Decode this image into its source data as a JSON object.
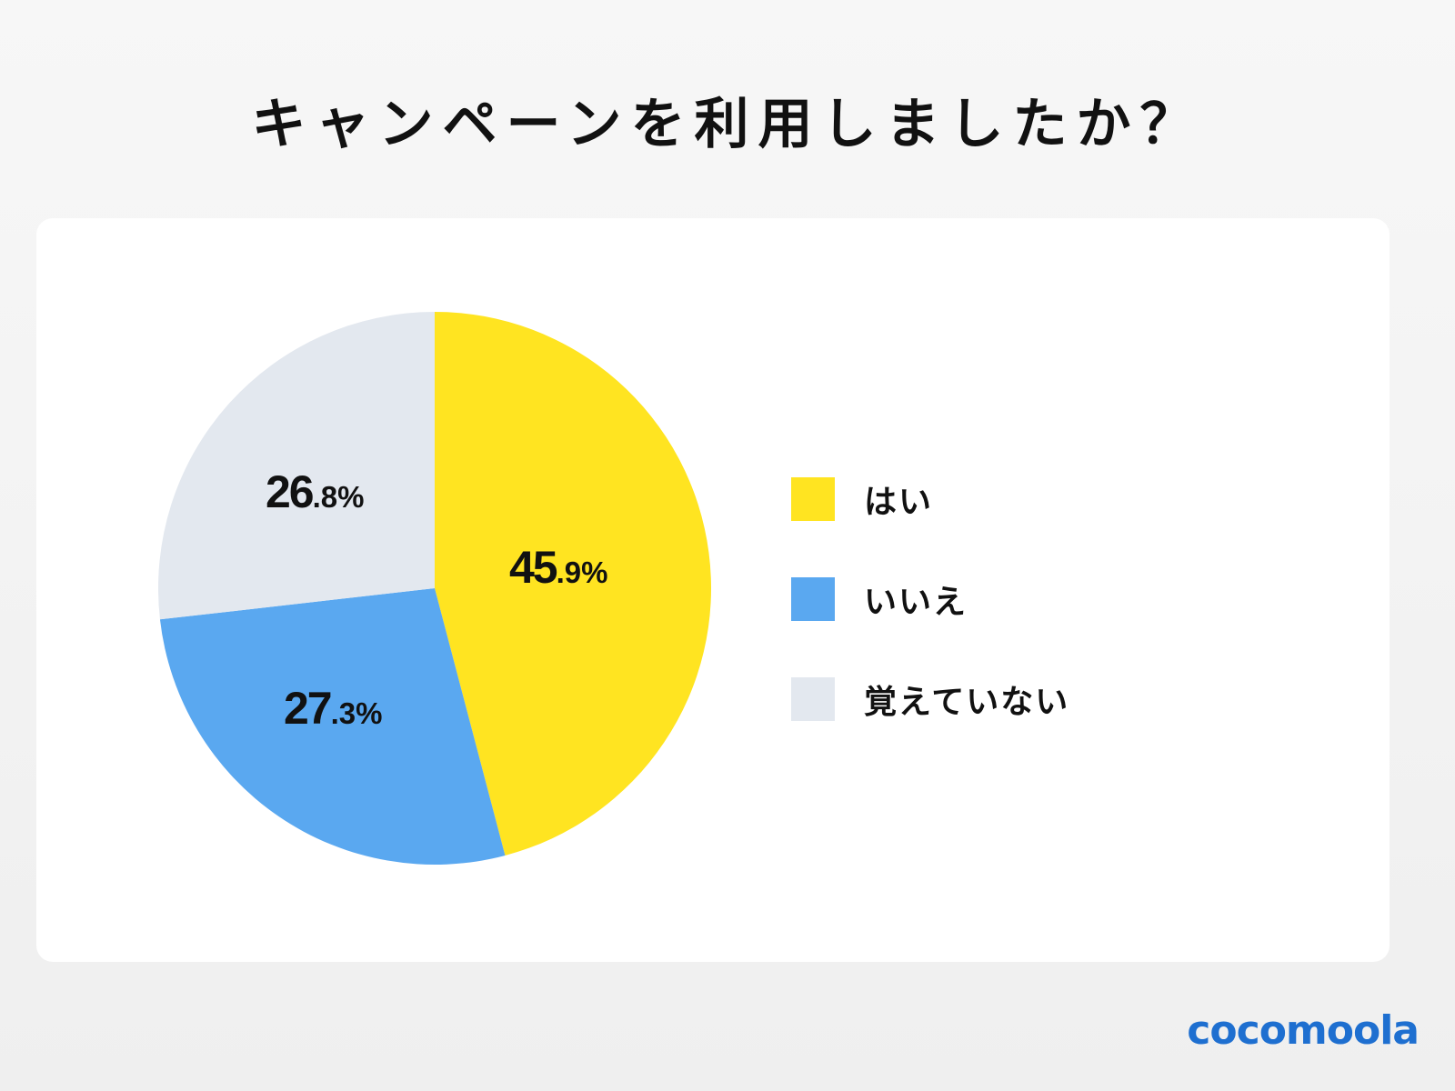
{
  "header": {
    "title": "キャンペーンを利用しましたか？"
  },
  "legend": [
    {
      "label": "はい",
      "color": "#ffe421"
    },
    {
      "label": "いいえ",
      "color": "#5aa8f0"
    },
    {
      "label": "覚えていない",
      "color": "#e3e8ef"
    }
  ],
  "labels": [
    {
      "int": "45",
      "dec": ".9%"
    },
    {
      "int": "27",
      "dec": ".3%"
    },
    {
      "int": "26",
      "dec": ".8%"
    }
  ],
  "brand": {
    "logo": "cocomoola",
    "color": "#1e6fd0"
  },
  "chart_data": {
    "type": "pie",
    "title": "キャンペーンを利用しましたか？",
    "categories": [
      "はい",
      "いいえ",
      "覚えていない"
    ],
    "values": [
      45.9,
      27.3,
      26.8
    ],
    "colors": [
      "#ffe421",
      "#5aa8f0",
      "#e3e8ef"
    ],
    "unit": "%",
    "start_angle": "12 o'clock, clockwise",
    "legend_position": "right"
  }
}
